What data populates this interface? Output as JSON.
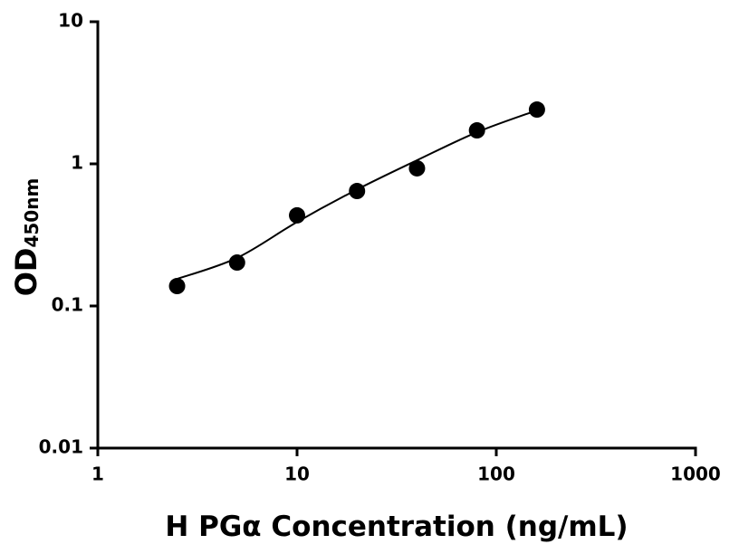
{
  "chart_data": {
    "type": "scatter",
    "x_label": "H PGα Concentration (ng/mL)",
    "y_label": "OD",
    "y_label_subscript": "450nm",
    "x": [
      2.5,
      5,
      10,
      20,
      40,
      80,
      160
    ],
    "series": [
      {
        "mode": "markers",
        "color": "#000000",
        "values": [
          0.138,
          0.202,
          0.434,
          0.644,
          0.93,
          1.72,
          2.41
        ]
      },
      {
        "mode": "line",
        "color": "#000000",
        "values": [
          0.155,
          0.218,
          0.39,
          0.66,
          1.06,
          1.67,
          2.38
        ]
      }
    ],
    "xlog": true,
    "ylog": true,
    "xlim": [
      1,
      1000
    ],
    "ylim": [
      0.01,
      10
    ],
    "xticks": [
      1,
      10,
      100,
      1000
    ],
    "yticks": [
      0.01,
      0.1,
      1,
      10
    ]
  }
}
